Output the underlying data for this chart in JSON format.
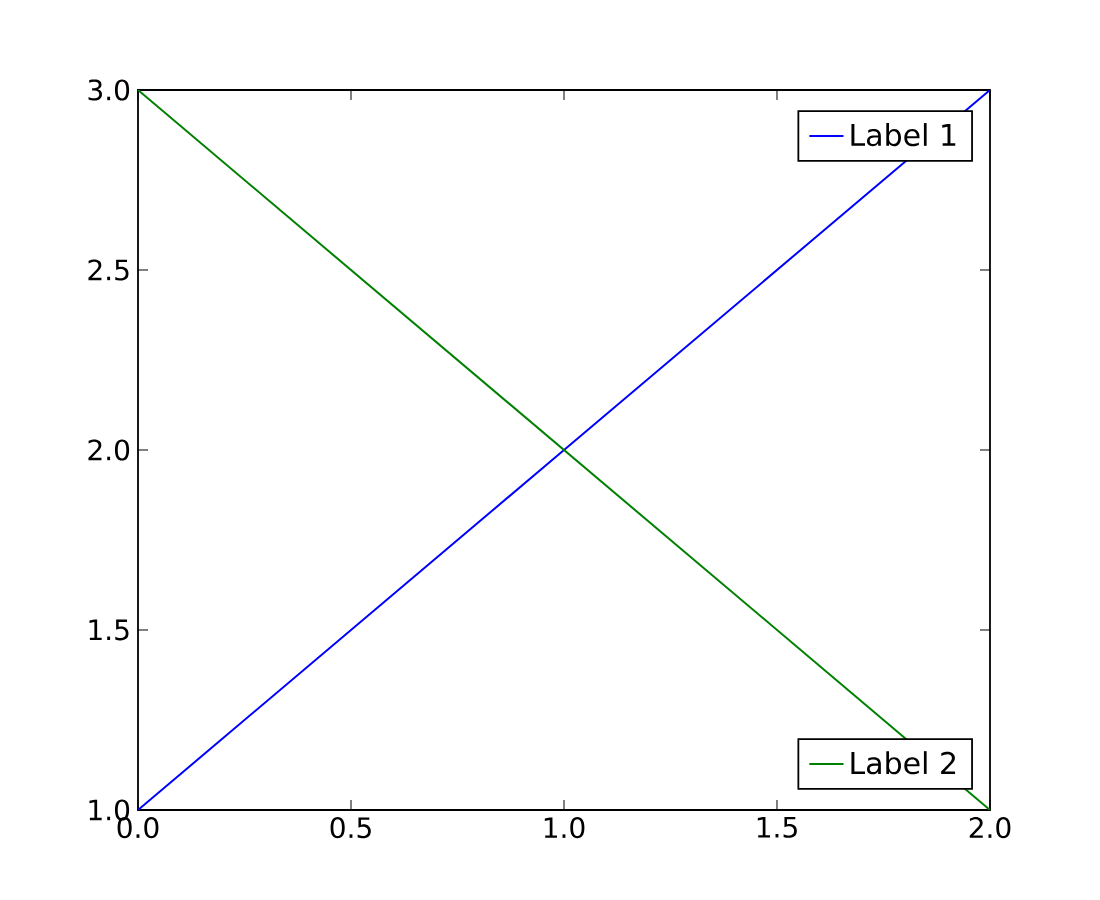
{
  "chart_data": {
    "type": "line",
    "x": [
      0,
      1,
      2
    ],
    "series": [
      {
        "name": "Label 1",
        "color": "#0000ff",
        "values": [
          1,
          2,
          3
        ]
      },
      {
        "name": "Label 2",
        "color": "#008000",
        "values": [
          3,
          2,
          1
        ]
      }
    ],
    "xlim": [
      0,
      2
    ],
    "ylim": [
      1,
      3
    ],
    "xticks": [
      {
        "value": 0,
        "label": "0.0"
      },
      {
        "value": 0.5,
        "label": "0.5"
      },
      {
        "value": 1,
        "label": "1.0"
      },
      {
        "value": 1.5,
        "label": "1.5"
      },
      {
        "value": 2,
        "label": "2.0"
      }
    ],
    "yticks": [
      {
        "value": 1,
        "label": "1.0"
      },
      {
        "value": 1.5,
        "label": "1.5"
      },
      {
        "value": 2,
        "label": "2.0"
      },
      {
        "value": 2.5,
        "label": "2.5"
      },
      {
        "value": 3,
        "label": "3.0"
      }
    ],
    "legend": "right",
    "grid": false,
    "marker": "none",
    "line_style": "solid"
  }
}
